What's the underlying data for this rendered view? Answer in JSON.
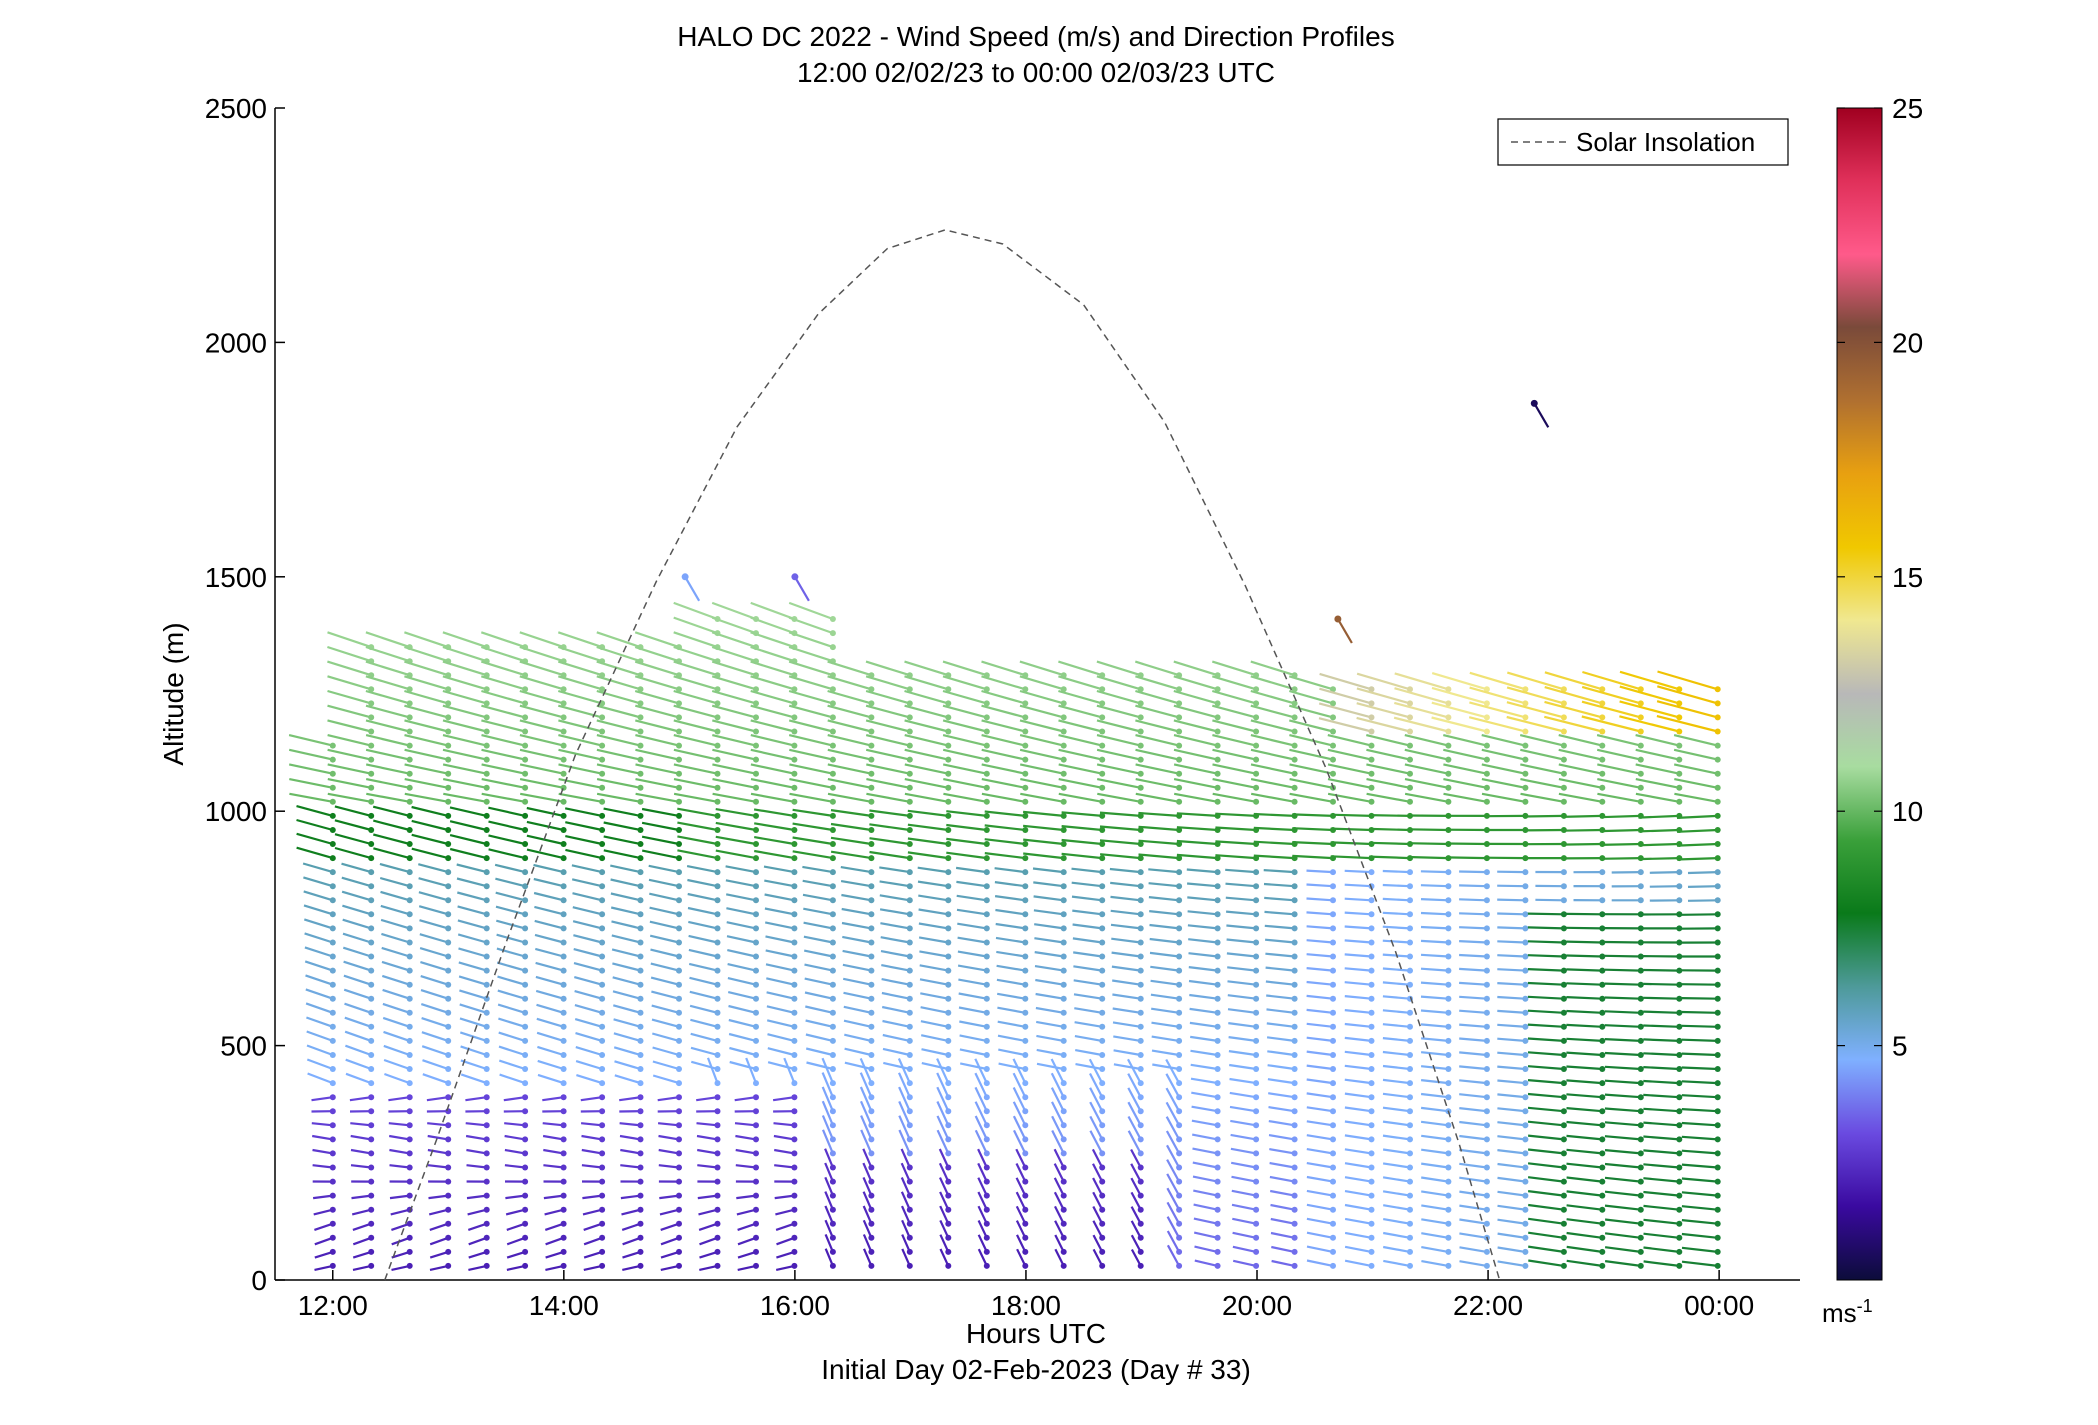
{
  "chart_data": {
    "type": "scatter",
    "title": "HALO DC 2022 - Wind Speed (m/s) and Direction Profiles",
    "subtitle": "12:00 02/02/23 to 00:00 02/03/23  UTC",
    "xlabel": "Hours UTC",
    "xlabel2": "Initial Day 02-Feb-2023 (Day # 33)",
    "ylabel": "Altitude (m)",
    "xlim": [
      11.5,
      24.7
    ],
    "ylim": [
      0,
      2500
    ],
    "x_ticks": [
      12,
      14,
      16,
      18,
      20,
      22,
      24
    ],
    "x_tick_labels": [
      "12:00",
      "14:00",
      "16:00",
      "18:00",
      "20:00",
      "22:00",
      "00:00"
    ],
    "y_ticks": [
      0,
      500,
      1000,
      1500,
      2000,
      2500
    ],
    "y_tick_labels": [
      "0",
      "500",
      "1000",
      "1500",
      "2000",
      "2500"
    ],
    "legend": {
      "label": "Solar Insolation",
      "position": "top-right",
      "line_color": "#555555",
      "line_style": "dashed"
    },
    "colorbar": {
      "label": "ms",
      "label_exponent": "-1",
      "range": [
        0,
        25
      ],
      "ticks": [
        5,
        10,
        15,
        20,
        25
      ],
      "tick_labels": [
        "5",
        "10",
        "15",
        "20",
        "25"
      ],
      "colormap": [
        "#0c0c3a",
        "#3a0aa0",
        "#6a4ae0",
        "#7fb0ff",
        "#4e9a9a",
        "#0a7a1a",
        "#3aa03a",
        "#a8dca0",
        "#b8b8b8",
        "#f0e890",
        "#f0c800",
        "#e8a010",
        "#b07030",
        "#7a4a3a",
        "#ff5a8a",
        "#e0305a",
        "#a00020"
      ]
    },
    "solar_insolation_curve": [
      {
        "x": 12.45,
        "y": 0
      },
      {
        "x": 12.9,
        "y": 300
      },
      {
        "x": 13.5,
        "y": 720
      },
      {
        "x": 14.1,
        "y": 1120
      },
      {
        "x": 14.8,
        "y": 1490
      },
      {
        "x": 15.5,
        "y": 1820
      },
      {
        "x": 16.2,
        "y": 2060
      },
      {
        "x": 16.8,
        "y": 2200
      },
      {
        "x": 17.3,
        "y": 2240
      },
      {
        "x": 17.8,
        "y": 2210
      },
      {
        "x": 18.5,
        "y": 2080
      },
      {
        "x": 19.2,
        "y": 1830
      },
      {
        "x": 19.9,
        "y": 1480
      },
      {
        "x": 20.6,
        "y": 1090
      },
      {
        "x": 21.2,
        "y": 700
      },
      {
        "x": 21.75,
        "y": 290
      },
      {
        "x": 22.1,
        "y": 0
      }
    ],
    "wind_profiles": {
      "description": "Wind barbs at hourly-spaced profiles (every ~0.33 h) from 12:00 to 00:00 UTC, altitudes 30 m to ~1500 m; speed in m/s encoded by colorbar",
      "time_start": 12.0,
      "time_end": 24.1,
      "time_step": 0.333,
      "altitude_min": 30,
      "altitude_step": 30,
      "isolated_points": [
        {
          "x": 22.4,
          "y": 1870,
          "speed": 0.5
        },
        {
          "x": 20.7,
          "y": 1410,
          "speed": 19.5
        },
        {
          "x": 15.05,
          "y": 1500,
          "speed": 4.5
        },
        {
          "x": 16.0,
          "y": 1500,
          "speed": 3.5
        }
      ]
    }
  }
}
